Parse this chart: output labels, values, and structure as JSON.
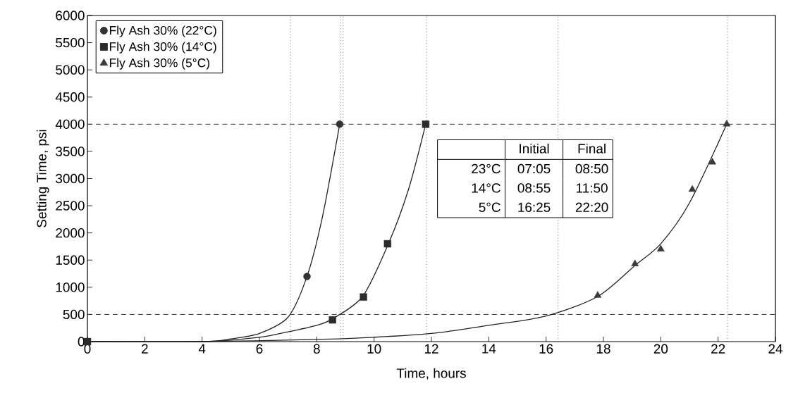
{
  "chart_data": {
    "type": "scatter",
    "xlabel": "Time, hours",
    "ylabel": "Setting Time, psi",
    "xlim": [
      0,
      24
    ],
    "ylim": [
      0,
      6000
    ],
    "xticks": [
      0,
      2,
      4,
      6,
      8,
      10,
      12,
      14,
      16,
      18,
      20,
      22,
      24
    ],
    "yticks": [
      0,
      500,
      1000,
      1500,
      2000,
      2500,
      3000,
      3500,
      4000,
      4500,
      5000,
      5500,
      6000
    ],
    "grid": false,
    "legend": "top left",
    "series": [
      {
        "name": "Fly Ash  30% (22°C)",
        "marker": "circle",
        "color": "#333333",
        "x": [
          7.66,
          8.8
        ],
        "values": [
          1200,
          4000
        ]
      },
      {
        "name": "Fly Ash  30% (14°C)",
        "marker": "square",
        "color": "#2b2b2b",
        "x": [
          0,
          8.55,
          9.63,
          10.47,
          11.8
        ],
        "values": [
          0,
          400,
          820,
          1800,
          4000
        ]
      },
      {
        "name": "Fly Ash  30%  (5°C)",
        "marker": "triangle",
        "color": "#3a3a3a",
        "x": [
          17.8,
          19.1,
          20.0,
          21.1,
          21.8,
          22.3
        ],
        "values": [
          850,
          1430,
          1700,
          2800,
          3300,
          4000
        ]
      },
      {
        "type": "line",
        "color": "#222222",
        "line_style": "solid",
        "x": [
          0,
          4,
          5,
          6,
          7,
          7.66,
          8.2,
          8.8
        ],
        "values": [
          0,
          0,
          50,
          150,
          450,
          1200,
          2300,
          4000
        ]
      },
      {
        "type": "line",
        "color": "#222222",
        "line_style": "solid",
        "x": [
          0,
          4,
          6,
          7,
          8,
          8.55,
          9.6,
          10.5,
          11.2,
          11.8
        ],
        "values": [
          0,
          0,
          80,
          180,
          300,
          420,
          830,
          1800,
          2800,
          4000
        ]
      },
      {
        "type": "line",
        "color": "#222222",
        "line_style": "solid",
        "x": [
          0,
          4,
          8,
          10,
          12,
          14,
          16,
          17.8,
          19.1,
          20,
          21,
          22.3
        ],
        "values": [
          0,
          0,
          40,
          80,
          150,
          300,
          470,
          830,
          1400,
          1800,
          2550,
          4000
        ]
      }
    ],
    "ref_lines": [
      {
        "axis": "y",
        "value": 500,
        "line_style": "dashed"
      },
      {
        "axis": "y",
        "value": 4000,
        "line_style": "dashed"
      },
      {
        "axis": "x",
        "value": 7.08,
        "line_style": "dotted"
      },
      {
        "axis": "x",
        "value": 8.83,
        "line_style": "dotted"
      },
      {
        "axis": "x",
        "value": 8.92,
        "line_style": "dotted"
      },
      {
        "axis": "x",
        "value": 11.83,
        "line_style": "dotted"
      },
      {
        "axis": "x",
        "value": 16.42,
        "line_style": "dotted"
      },
      {
        "axis": "x",
        "value": 22.33,
        "line_style": "dotted"
      }
    ],
    "annotations": [
      "Initial",
      "Final",
      "23°C",
      "07:05",
      "08:50",
      "14°C",
      "08:55",
      "11:50",
      "5°C",
      "16:25",
      "22:20"
    ]
  }
}
